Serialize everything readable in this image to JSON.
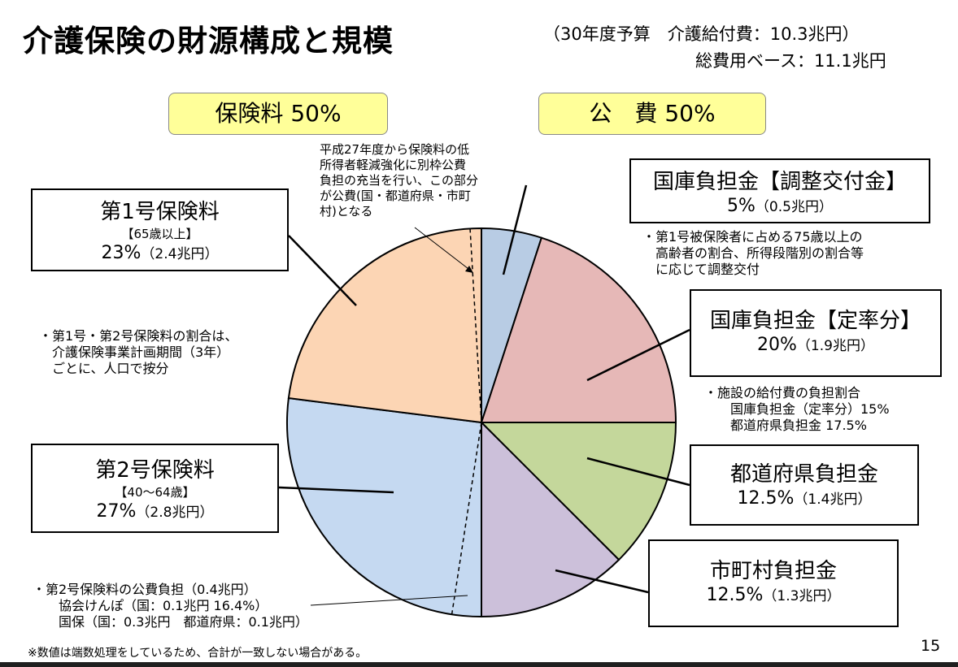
{
  "title": "介護保険の財源構成と規模",
  "budget": {
    "line1": "（30年度予算　介護給付費：10.3兆円）",
    "line2": "総費用ベース：11.1兆円"
  },
  "headers": {
    "premium": "保険料 50%",
    "public": "公　費 50%"
  },
  "boxes": {
    "first": {
      "title": "第1号保険料",
      "sub": "【65歳以上】",
      "pct": "23%",
      "amt": "（2.4兆円）"
    },
    "second": {
      "title": "第2号保険料",
      "sub": "【40～64歳】",
      "pct": "27%",
      "amt": "（2.8兆円）"
    },
    "national_adj": {
      "title": "国庫負担金【調整交付金】",
      "pct": "5%",
      "amt": "（0.5兆円）"
    },
    "national_fixed": {
      "title": "国庫負担金【定率分】",
      "pct": "20%",
      "amt": "（1.9兆円）"
    },
    "prefecture": {
      "title": "都道府県負担金",
      "pct": "12.5%",
      "amt": "（1.4兆円）"
    },
    "municipal": {
      "title": "市町村負担金",
      "pct": "12.5%",
      "amt": "（1.3兆円）"
    }
  },
  "notes": {
    "reduction": [
      "平成27年度から保険料の低",
      "所得者軽減強化に別枠公費",
      "負担の充当を行い、この部分",
      "が公費(国・都道府県・市町",
      "村)となる"
    ],
    "ratio": [
      "・第1号・第2号保険料の割合は、",
      "　介護保険事業計画期間（3年）",
      "　ごとに、人口で按分"
    ],
    "adjustment": [
      "・第1号被保険者に占める75歳以上の",
      "　高齢者の割合、所得段階別の割合等",
      "　に応じて調整交付"
    ],
    "facility": [
      "・施設の給付費の負担割合",
      "　　国庫負担金（定率分）15%",
      "　　都道府県負担金 17.5%"
    ],
    "public_burden": [
      "・第2号保険料の公費負担（0.4兆円）",
      "　　協会けんぽ（国：0.1兆円 16.4%）",
      "　　国保（国：0.3兆円　都道府県：0.1兆円）"
    ]
  },
  "footnote": "※数値は端数処理をしているため、合計が一致しない場合がある。",
  "page_number": "15",
  "chart_data": {
    "type": "pie",
    "start": "12 o'clock",
    "direction": "clockwise",
    "slices": [
      {
        "label": "国庫負担金【調整交付金】",
        "value": 5,
        "color": "#b8cce4"
      },
      {
        "label": "国庫負担金【定率分】",
        "value": 20,
        "color": "#e6b8b7"
      },
      {
        "label": "都道府県負担金",
        "value": 12.5,
        "color": "#c4d79b"
      },
      {
        "label": "市町村負担金",
        "value": 12.5,
        "color": "#ccc0da"
      },
      {
        "label": "第2号保険料",
        "value": 27,
        "color": "#c5d9f1"
      },
      {
        "label": "第1号保険料",
        "value": 23,
        "color": "#fcd5b4"
      }
    ]
  }
}
